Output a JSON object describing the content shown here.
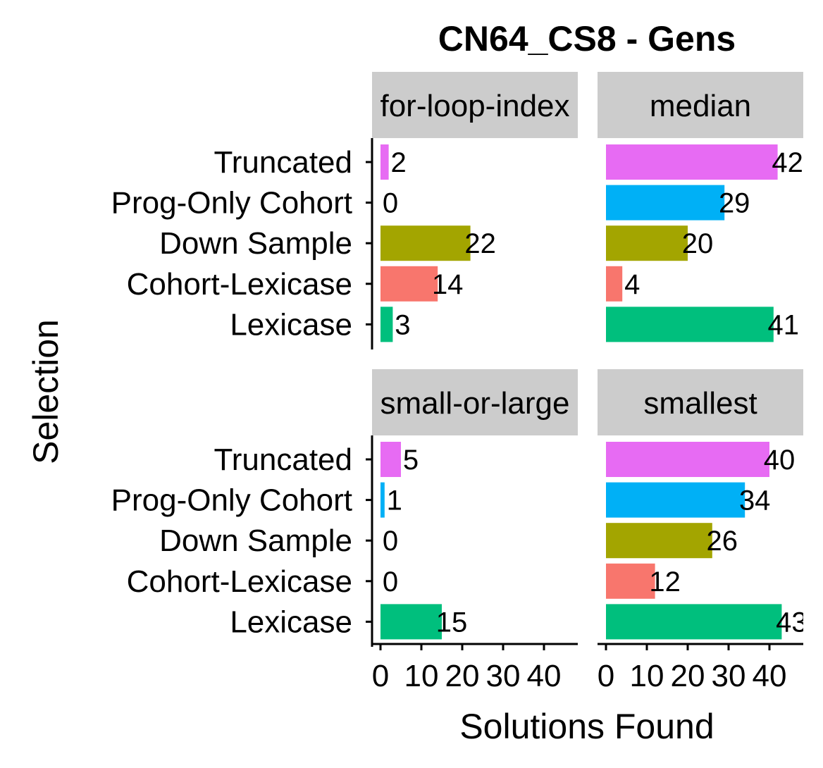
{
  "chart_data": {
    "type": "bar",
    "orientation": "horizontal",
    "title": "CN64_CS8 - Gens",
    "xlabel": "Solutions Found",
    "ylabel": "Selection",
    "categories": [
      "Truncated",
      "Prog-Only Cohort",
      "Down Sample",
      "Cohort-Lexicase",
      "Lexicase"
    ],
    "xlim": [
      0,
      46
    ],
    "xticks": [
      0,
      10,
      20,
      30,
      40
    ],
    "grid": false,
    "legend": "none",
    "colors": {
      "Truncated": "#E76BF3",
      "Prog-Only Cohort": "#00B0F6",
      "Down Sample": "#A3A500",
      "Cohort-Lexicase": "#F8766D",
      "Lexicase": "#00BF7D"
    },
    "panels": [
      {
        "facet": "for-loop-index",
        "values": [
          2,
          0,
          22,
          14,
          3
        ]
      },
      {
        "facet": "median",
        "values": [
          42,
          29,
          20,
          4,
          41
        ]
      },
      {
        "facet": "small-or-large",
        "values": [
          5,
          1,
          0,
          0,
          15
        ]
      },
      {
        "facet": "smallest",
        "values": [
          40,
          34,
          26,
          12,
          43
        ]
      }
    ]
  }
}
